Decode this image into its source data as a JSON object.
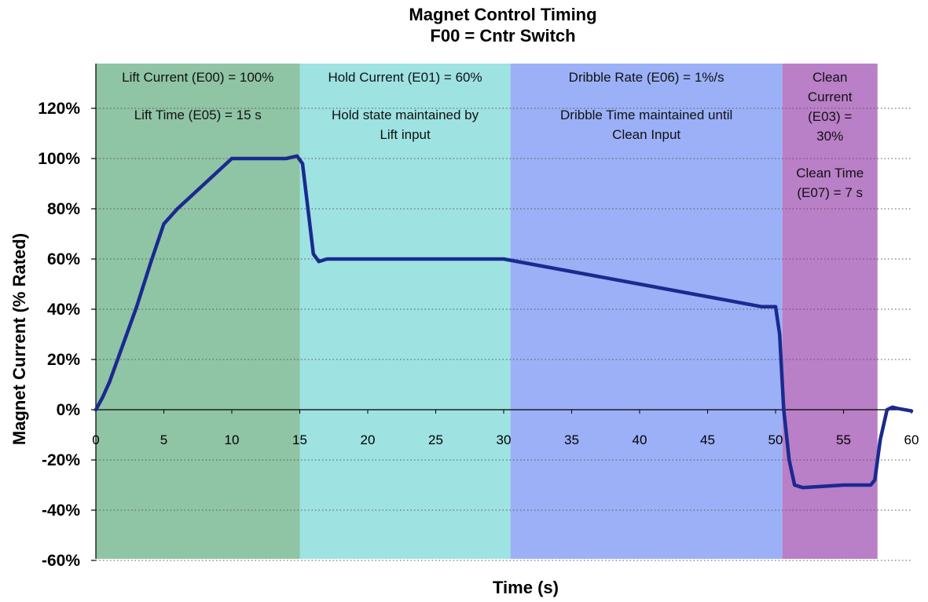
{
  "chart_data": {
    "type": "line",
    "title": "Magnet Control Timing",
    "subtitle": "F00 = Cntr Switch",
    "xlabel": "Time (s)",
    "ylabel": "Magnet Current (% Rated)",
    "xlim": [
      0,
      60
    ],
    "ylim": [
      -60,
      120
    ],
    "x_ticks": [
      "0",
      "5",
      "10",
      "15",
      "20",
      "25",
      "30",
      "35",
      "40",
      "45",
      "50",
      "55",
      "60"
    ],
    "y_ticks": [
      "120%",
      "100%",
      "80%",
      "60%",
      "40%",
      "20%",
      "0%",
      "-20%",
      "-40%",
      "-60%"
    ],
    "grid": "horizontal dotted",
    "regions": [
      {
        "x_start": 0,
        "x_end": 15,
        "color": "#8fc4a5",
        "texts": [
          "Lift Current (E00) = 100%",
          "Lift Time (E05) = 15 s"
        ]
      },
      {
        "x_start": 15,
        "x_end": 30.5,
        "color": "#9ee2e2",
        "texts": [
          "Hold Current (E01) = 60%",
          "Hold state maintained by",
          "Lift input"
        ]
      },
      {
        "x_start": 30.5,
        "x_end": 50.5,
        "color": "#9bb0f7",
        "texts": [
          "Dribble Rate (E06) = 1%/s",
          "Dribble Time maintained until",
          "Clean Input"
        ]
      },
      {
        "x_start": 50.5,
        "x_end": 57.5,
        "color": "#b97fc7",
        "texts": [
          "Clean",
          "Current",
          "(E03) =",
          "30%",
          "Clean Time",
          "(E07) = 7 s"
        ]
      }
    ],
    "series": [
      {
        "color": "#1a2a8f",
        "points": [
          [
            0,
            0
          ],
          [
            0.5,
            5
          ],
          [
            1,
            11
          ],
          [
            2,
            26
          ],
          [
            3,
            41
          ],
          [
            4,
            58
          ],
          [
            5,
            74
          ],
          [
            6,
            80
          ],
          [
            7,
            85
          ],
          [
            8,
            90
          ],
          [
            9,
            95
          ],
          [
            10,
            100
          ],
          [
            11,
            100
          ],
          [
            12,
            100
          ],
          [
            13,
            100
          ],
          [
            14,
            100
          ],
          [
            14.8,
            101
          ],
          [
            15.2,
            98
          ],
          [
            15.6,
            80
          ],
          [
            16,
            62
          ],
          [
            16.4,
            59
          ],
          [
            17,
            60
          ],
          [
            20,
            60
          ],
          [
            25,
            60
          ],
          [
            30,
            60
          ],
          [
            35,
            55
          ],
          [
            40,
            50
          ],
          [
            45,
            45
          ],
          [
            49,
            41
          ],
          [
            50,
            41
          ],
          [
            50.3,
            30
          ],
          [
            50.6,
            0
          ],
          [
            51,
            -20
          ],
          [
            51.4,
            -30
          ],
          [
            52,
            -31
          ],
          [
            55,
            -30
          ],
          [
            57,
            -30
          ],
          [
            57.3,
            -28
          ],
          [
            57.7,
            -12
          ],
          [
            58.2,
            0
          ],
          [
            58.6,
            1
          ],
          [
            59,
            0.5
          ],
          [
            60,
            -0.5
          ]
        ]
      }
    ]
  }
}
